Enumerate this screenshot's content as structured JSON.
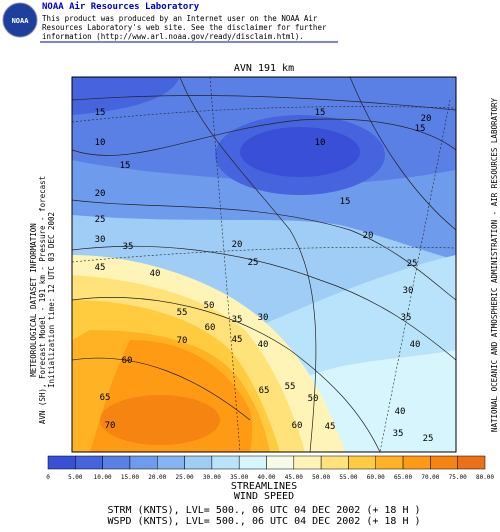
{
  "header": {
    "title": "NOAA Air Resources Laboratory",
    "lines": [
      "This product was produced by an Internet user on the NOAA Air",
      "Resources Laboratory's web site.  See the disclaimer for further",
      "information (http://www.arl.noaa.gov/ready/disclaim.html)."
    ],
    "logo": "NOAA"
  },
  "map": {
    "title": "AVN 191 km",
    "left_text": [
      "METEOROLOGICAL DATASET INFORMATION",
      "AVN (SH), Forecast Model - 191 km - Pressure - forecast",
      "Initialization time: 12 UTC 03 DEC 2002"
    ],
    "right_text": "NATIONAL OCEANIC AND ATMOSPHERIC ADMINISTRATION - AIR RESOURCES LABORATORY",
    "contour_labels": [
      "15",
      "10",
      "15",
      "20",
      "25",
      "30",
      "35",
      "45",
      "40",
      "15",
      "10",
      "20",
      "15",
      "15",
      "20",
      "25",
      "30",
      "35",
      "40",
      "20",
      "25",
      "35",
      "30",
      "50",
      "55",
      "60",
      "45",
      "40",
      "70",
      "60",
      "65",
      "55",
      "50",
      "60",
      "45",
      "40",
      "35",
      "25",
      "65",
      "70"
    ],
    "colorbar": {
      "labels": [
        "0",
        "5.00",
        "10.00",
        "15.00",
        "20.00",
        "25.00",
        "30.00",
        "35.00",
        "40.00",
        "45.00",
        "50.00",
        "55.00",
        "60.00",
        "65.00",
        "70.00",
        "75.00",
        "80.00"
      ],
      "colors": [
        "#3a4fd8",
        "#4564dd",
        "#5a80e6",
        "#6f9bed",
        "#86b4f2",
        "#9fcdf6",
        "#b8e3fa",
        "#d6f5fc",
        "#f4fbe6",
        "#fff4b8",
        "#ffe27a",
        "#ffcc40",
        "#ffb324",
        "#ff9a14",
        "#f58410",
        "#eb7018"
      ]
    },
    "footer": [
      "STREAMLINES",
      "WIND SPEED",
      "STRM (KNTS),  LVL= 500., 06 UTC 04 DEC 2002 (+ 18 H )",
      "WSPD (KNTS),  LVL= 500., 06 UTC 04 DEC 2002 (+ 18 H )"
    ]
  }
}
